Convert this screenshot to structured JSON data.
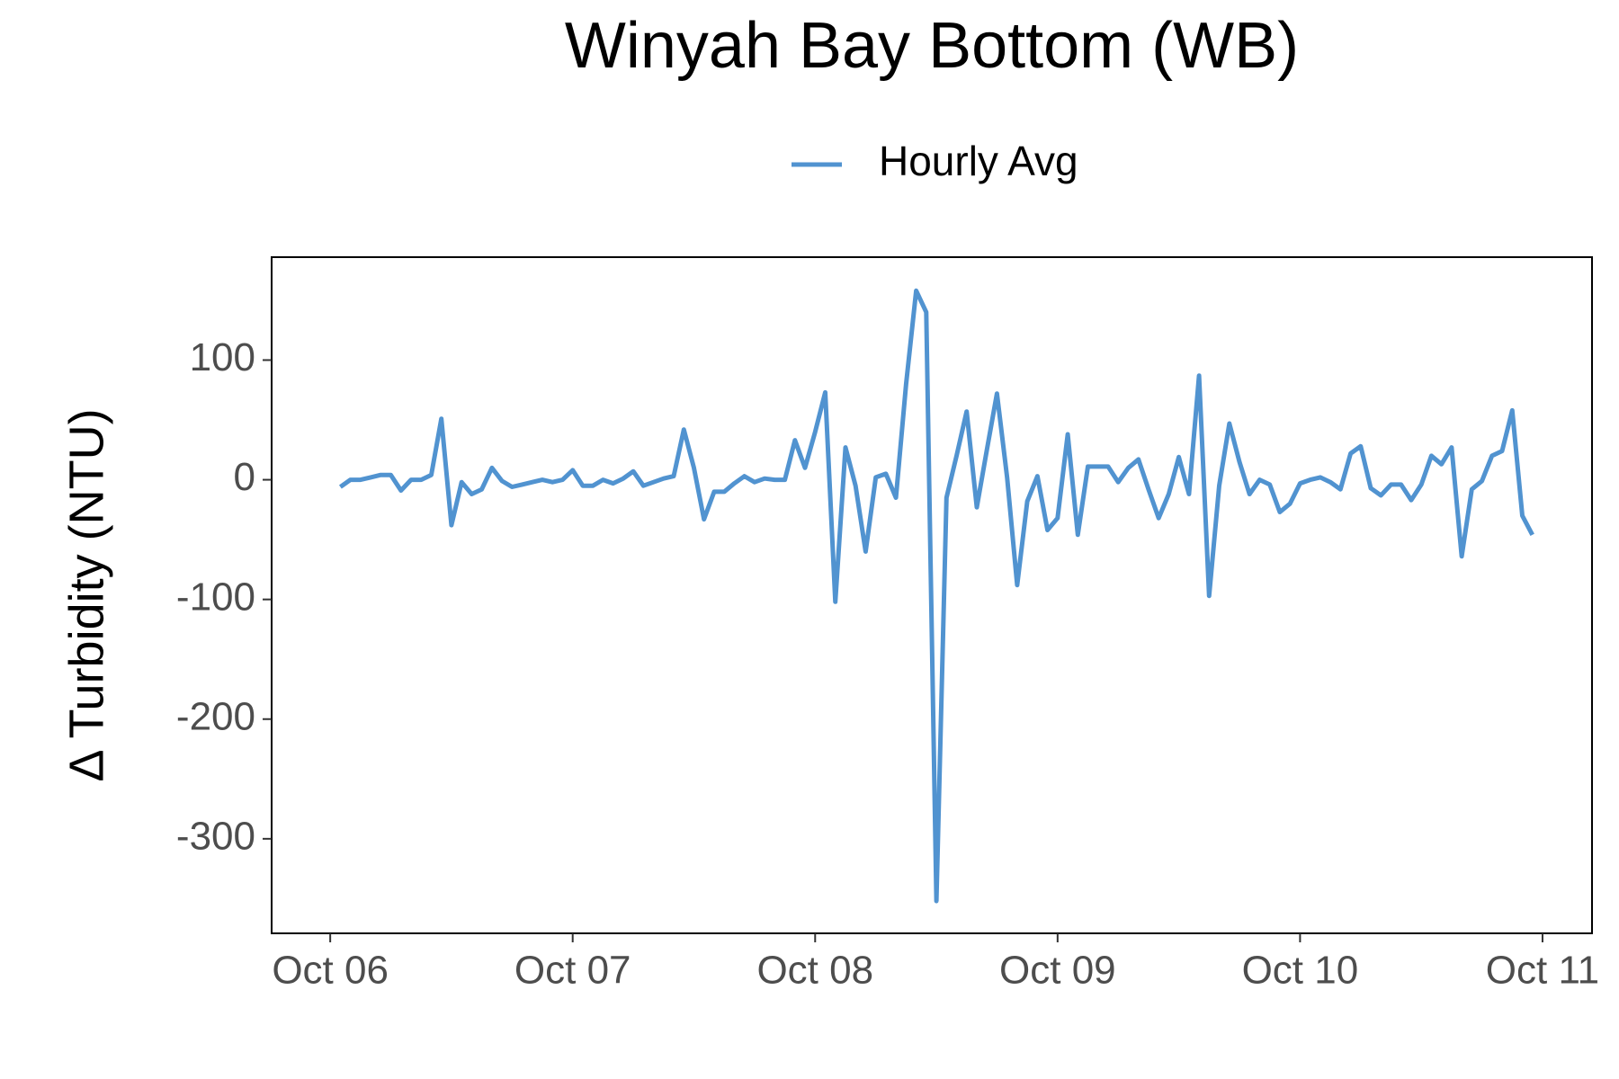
{
  "chart_data": {
    "type": "line",
    "title": "Winyah Bay Bottom (WB)",
    "ylabel": "Δ Turbidity (NTU)",
    "x": [
      1,
      2,
      3,
      4,
      5,
      6,
      7,
      8,
      9,
      10,
      11,
      12,
      13,
      14,
      15,
      16,
      17,
      18,
      19,
      20,
      21,
      22,
      23,
      24,
      25,
      26,
      27,
      28,
      29,
      30,
      31,
      32,
      33,
      34,
      35,
      36,
      37,
      38,
      39,
      40,
      41,
      42,
      43,
      44,
      45,
      46,
      47,
      48,
      49,
      50,
      51,
      52,
      53,
      54,
      55,
      56,
      57,
      58,
      59,
      60,
      61,
      62,
      63,
      64,
      65,
      66,
      67,
      68,
      69,
      70,
      71,
      72,
      73,
      74,
      75,
      76,
      77,
      78,
      79,
      80,
      81,
      82,
      83,
      84,
      85,
      86,
      87,
      88,
      89,
      90,
      91,
      92,
      93,
      94,
      95,
      96,
      97,
      98,
      99,
      100,
      101,
      102,
      103,
      104,
      105,
      106,
      107,
      108,
      109,
      110,
      111,
      112,
      113,
      114,
      115,
      116,
      117,
      118,
      119
    ],
    "series": [
      {
        "name": "Hourly Avg",
        "color": "#5193d0",
        "values": [
          -6,
          0,
          0,
          2,
          4,
          4,
          -9,
          0,
          0,
          4,
          51,
          -38,
          -2,
          -12,
          -8,
          10,
          -1,
          -6,
          -4,
          -2,
          0,
          -2,
          0,
          8,
          -5,
          -5,
          0,
          -3,
          1,
          7,
          -5,
          -2,
          1,
          3,
          42,
          10,
          -33,
          -10,
          -10,
          -3,
          3,
          -2,
          1,
          0,
          0,
          33,
          10,
          40,
          73,
          -102,
          27,
          -5,
          -60,
          2,
          5,
          -15,
          80,
          158,
          140,
          -352,
          -15,
          20,
          57,
          -23,
          25,
          72,
          2,
          -88,
          -18,
          3,
          -42,
          -32,
          38,
          -46,
          11,
          11,
          11,
          -2,
          10,
          17,
          -8,
          -32,
          -12,
          19,
          -12,
          87,
          -97,
          -5,
          47,
          15,
          -12,
          0,
          -4,
          -27,
          -20,
          -3,
          0,
          2,
          -2,
          -8,
          22,
          28,
          -7,
          -13,
          -4,
          -4,
          -17,
          -4,
          20,
          13,
          27,
          -64,
          -8,
          -1,
          20,
          24,
          58,
          -30,
          -46
        ]
      }
    ],
    "xlim": [
      -5.8,
      124.9
    ],
    "xticks": [
      {
        "value": 0,
        "label": "Oct 06"
      },
      {
        "value": 24,
        "label": "Oct 07"
      },
      {
        "value": 48,
        "label": "Oct 08"
      },
      {
        "value": 72,
        "label": "Oct 09"
      },
      {
        "value": 96,
        "label": "Oct 10"
      },
      {
        "value": 120,
        "label": "Oct 11"
      }
    ],
    "ylim": [
      -379,
      186
    ],
    "yticks": [
      -300,
      -200,
      -100,
      0,
      100
    ],
    "grid": false,
    "legend": "top"
  }
}
